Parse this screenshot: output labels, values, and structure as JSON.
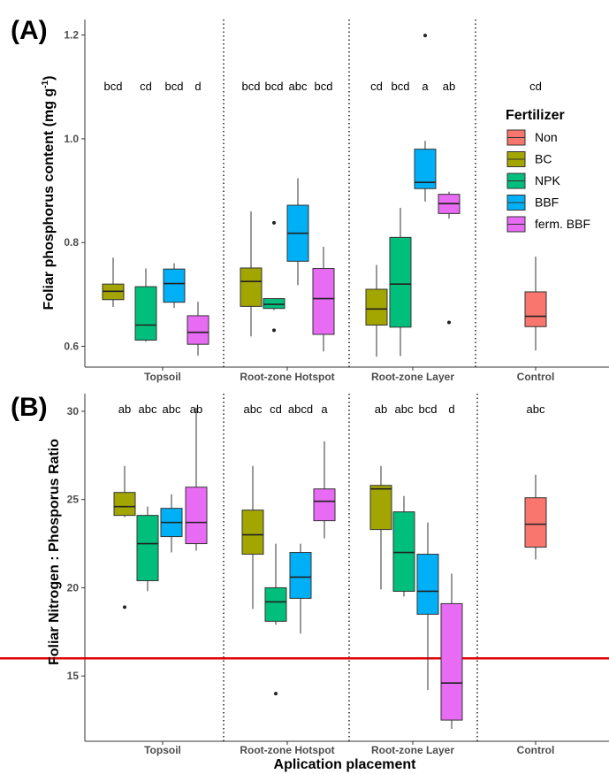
{
  "colors": {
    "Non": "#F8766D",
    "BC": "#A3A500",
    "NPK": "#00BF7D",
    "BBF": "#00B0F6",
    "ferm. BBF": "#E76BF3",
    "threshold": "#e00000"
  },
  "chart_data": [
    {
      "type": "boxplot",
      "panel_label": "(A)",
      "ylabel_main": "Foliar phosphorus content  (mg g",
      "ylabel_sup": "-1",
      "ylabel_close": ")",
      "ylim": [
        0.56,
        1.23
      ],
      "yticks": [
        0.6,
        0.8,
        1.0,
        1.2
      ],
      "ytick_labels": [
        "0.6",
        "0.8",
        "1.0",
        "1.2"
      ],
      "groups": [
        {
          "label": "Topsoil",
          "boxes": [
            {
              "fert": "BC",
              "whisk_lo": 0.676,
              "q1": 0.69,
              "median": 0.706,
              "q3": 0.72,
              "whisk_hi": 0.771,
              "outliers": [],
              "letter": "bcd"
            },
            {
              "fert": "NPK",
              "whisk_lo": 0.609,
              "q1": 0.612,
              "median": 0.641,
              "q3": 0.715,
              "whisk_hi": 0.75,
              "outliers": [],
              "letter": "cd"
            },
            {
              "fert": "BBF",
              "whisk_lo": 0.674,
              "q1": 0.685,
              "median": 0.721,
              "q3": 0.749,
              "whisk_hi": 0.76,
              "outliers": [],
              "letter": "bcd"
            },
            {
              "fert": "ferm. BBF",
              "whisk_lo": 0.582,
              "q1": 0.604,
              "median": 0.627,
              "q3": 0.659,
              "whisk_hi": 0.686,
              "outliers": [],
              "letter": "d"
            }
          ]
        },
        {
          "label": "Root-zone Hotspot",
          "boxes": [
            {
              "fert": "BC",
              "whisk_lo": 0.619,
              "q1": 0.677,
              "median": 0.725,
              "q3": 0.751,
              "whisk_hi": 0.86,
              "outliers": [],
              "letter": "bcd"
            },
            {
              "fert": "NPK",
              "whisk_lo": 0.67,
              "q1": 0.673,
              "median": 0.681,
              "q3": 0.692,
              "whisk_hi": 0.693,
              "outliers": [
                0.631,
                0.838
              ],
              "letter": "bcd"
            },
            {
              "fert": "BBF",
              "whisk_lo": 0.718,
              "q1": 0.764,
              "median": 0.818,
              "q3": 0.872,
              "whisk_hi": 0.924,
              "outliers": [],
              "letter": "abc"
            },
            {
              "fert": "ferm. BBF",
              "whisk_lo": 0.59,
              "q1": 0.623,
              "median": 0.692,
              "q3": 0.75,
              "whisk_hi": 0.792,
              "outliers": [],
              "letter": "bcd"
            }
          ]
        },
        {
          "label": "Root-zone Layer",
          "boxes": [
            {
              "fert": "BC",
              "whisk_lo": 0.58,
              "q1": 0.641,
              "median": 0.672,
              "q3": 0.71,
              "whisk_hi": 0.757,
              "outliers": [],
              "letter": "cd"
            },
            {
              "fert": "NPK",
              "whisk_lo": 0.581,
              "q1": 0.637,
              "median": 0.72,
              "q3": 0.81,
              "whisk_hi": 0.867,
              "outliers": [],
              "letter": "bcd"
            },
            {
              "fert": "BBF",
              "whisk_lo": 0.879,
              "q1": 0.904,
              "median": 0.916,
              "q3": 0.98,
              "whisk_hi": 0.996,
              "outliers": [
                1.199
              ],
              "letter": "a"
            },
            {
              "fert": "ferm. BBF",
              "whisk_lo": 0.846,
              "q1": 0.856,
              "median": 0.875,
              "q3": 0.893,
              "whisk_hi": 0.898,
              "outliers": [
                0.646
              ],
              "letter": "ab"
            }
          ]
        },
        {
          "label": "Control",
          "boxes": [
            {
              "fert": "Non",
              "whisk_lo": 0.592,
              "q1": 0.638,
              "median": 0.658,
              "q3": 0.705,
              "whisk_hi": 0.773,
              "outliers": [],
              "letter": "cd"
            }
          ]
        }
      ],
      "legend": {
        "title": "Fertilizer",
        "entries": [
          "Non",
          "BC",
          "NPK",
          "BBF",
          "ferm. BBF"
        ],
        "placement": "right"
      }
    },
    {
      "type": "boxplot",
      "panel_label": "(B)",
      "ylabel": "Foliar Nitrogen : Phosporus Ratio",
      "xlabel": "Aplication placement",
      "ylim": [
        11.3,
        31.0
      ],
      "yticks": [
        15,
        20,
        25,
        30
      ],
      "ytick_labels": [
        "15",
        "20",
        "25",
        "30"
      ],
      "hline": 16,
      "groups": [
        {
          "label": "Topsoil",
          "boxes": [
            {
              "fert": "BC",
              "whisk_lo": 24.0,
              "q1": 24.1,
              "median": 24.6,
              "q3": 25.4,
              "whisk_hi": 26.9,
              "outliers": [
                18.9
              ],
              "letter": "ab"
            },
            {
              "fert": "NPK",
              "whisk_lo": 19.8,
              "q1": 20.4,
              "median": 22.5,
              "q3": 24.1,
              "whisk_hi": 24.6,
              "outliers": [],
              "letter": "abc"
            },
            {
              "fert": "BBF",
              "whisk_lo": 22.0,
              "q1": 22.9,
              "median": 23.7,
              "q3": 24.5,
              "whisk_hi": 25.3,
              "outliers": [],
              "letter": "abc"
            },
            {
              "fert": "ferm. BBF",
              "whisk_lo": 22.1,
              "q1": 22.5,
              "median": 23.7,
              "q3": 25.7,
              "whisk_hi": 30.2,
              "outliers": [],
              "letter": "ab"
            }
          ]
        },
        {
          "label": "Root-zone Hotspot",
          "boxes": [
            {
              "fert": "BC",
              "whisk_lo": 18.8,
              "q1": 21.9,
              "median": 23.0,
              "q3": 24.4,
              "whisk_hi": 26.9,
              "outliers": [],
              "letter": "abc"
            },
            {
              "fert": "NPK",
              "whisk_lo": 17.9,
              "q1": 18.1,
              "median": 19.2,
              "q3": 20.0,
              "whisk_hi": 22.5,
              "outliers": [
                14.0
              ],
              "letter": "cd"
            },
            {
              "fert": "BBF",
              "whisk_lo": 17.4,
              "q1": 19.4,
              "median": 20.6,
              "q3": 22.0,
              "whisk_hi": 22.5,
              "outliers": [],
              "letter": "abcd"
            },
            {
              "fert": "ferm. BBF",
              "whisk_lo": 22.8,
              "q1": 23.8,
              "median": 24.9,
              "q3": 25.6,
              "whisk_hi": 28.3,
              "outliers": [],
              "letter": "a"
            }
          ]
        },
        {
          "label": "Root-zone Layer",
          "boxes": [
            {
              "fert": "BC",
              "whisk_lo": 19.9,
              "q1": 23.3,
              "median": 25.6,
              "q3": 25.8,
              "whisk_hi": 26.9,
              "outliers": [],
              "letter": "ab"
            },
            {
              "fert": "NPK",
              "whisk_lo": 19.5,
              "q1": 19.8,
              "median": 22.0,
              "q3": 24.3,
              "whisk_hi": 25.2,
              "outliers": [],
              "letter": "abc"
            },
            {
              "fert": "BBF",
              "whisk_lo": 14.2,
              "q1": 18.5,
              "median": 19.8,
              "q3": 21.9,
              "whisk_hi": 23.7,
              "outliers": [],
              "letter": "bcd"
            },
            {
              "fert": "ferm. BBF",
              "whisk_lo": 12.0,
              "q1": 12.5,
              "median": 14.6,
              "q3": 19.1,
              "whisk_hi": 20.8,
              "outliers": [],
              "letter": "d"
            }
          ]
        },
        {
          "label": "Control",
          "boxes": [
            {
              "fert": "Non",
              "whisk_lo": 21.6,
              "q1": 22.3,
              "median": 23.6,
              "q3": 25.1,
              "whisk_hi": 26.4,
              "outliers": [],
              "letter": "abc"
            }
          ]
        }
      ]
    }
  ]
}
